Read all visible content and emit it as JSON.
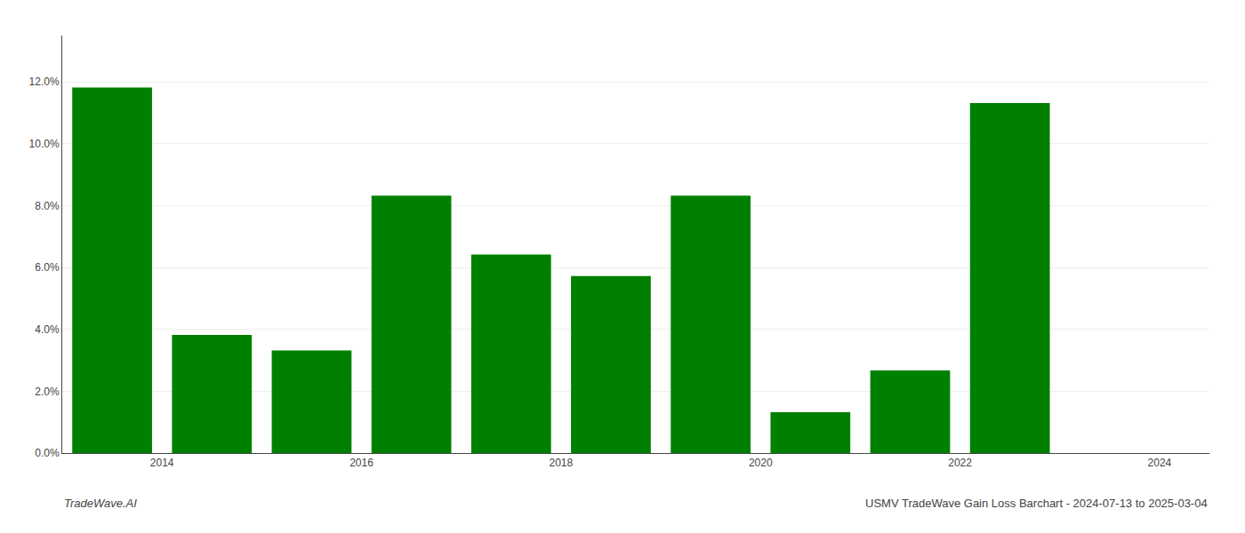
{
  "chart_data": {
    "type": "bar",
    "x": [
      2013.5,
      2014.5,
      2015.5,
      2016.5,
      2017.5,
      2018.5,
      2019.5,
      2020.5,
      2021.5,
      2022.5
    ],
    "values": [
      0.1182,
      0.0382,
      0.0332,
      0.0832,
      0.0642,
      0.0572,
      0.0832,
      0.0132,
      0.0267,
      0.1132
    ],
    "color": "#008000",
    "xlim": [
      2013.0,
      2024.5
    ],
    "xticks": [
      2014,
      2016,
      2018,
      2020,
      2022,
      2024
    ],
    "ylim": [
      0,
      0.135
    ],
    "yticks": [
      {
        "value": 0.0,
        "label": "0.0%"
      },
      {
        "value": 0.02,
        "label": "2.0%"
      },
      {
        "value": 0.04,
        "label": "4.0%"
      },
      {
        "value": 0.06,
        "label": "6.0%"
      },
      {
        "value": 0.08,
        "label": "8.0%"
      },
      {
        "value": 0.1,
        "label": "10.0%"
      },
      {
        "value": 0.12,
        "label": "12.0%"
      }
    ],
    "grid": true,
    "annotations": [
      "TradeWave.AI",
      "USMV TradeWave Gain Loss Barchart - 2024-07-13 to 2025-03-04"
    ]
  }
}
